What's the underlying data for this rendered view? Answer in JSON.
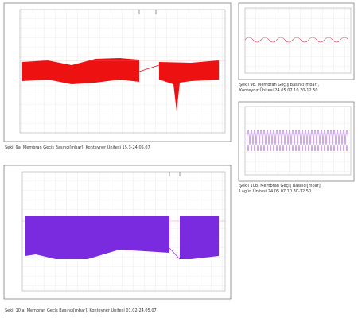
{
  "figures": [
    {
      "id": "9a",
      "caption": [
        "Şekil 9a. Membran Geçiş Basıncı[mbar], Konteyner Ünitesi 15.3-24.05.07"
      ]
    },
    {
      "id": "9b",
      "caption": [
        "Şekil 9b. Membran Geçiş Basıncı[mbar],",
        "Konteynır Ünitesi 24.05.07 10.30-12.50"
      ]
    },
    {
      "id": "10b",
      "caption": [
        "Şekil 10b. Membran Geçiş Basıncı[mbar],",
        "Lagün Ünitesi 24.05.07 10.30-12.50"
      ]
    },
    {
      "id": "10a",
      "caption": [
        "Şekil 10 a. Membran Geçiş Basıncı[mbar], Konteyner Ünitesi 01.02-24.05.07"
      ]
    }
  ]
}
